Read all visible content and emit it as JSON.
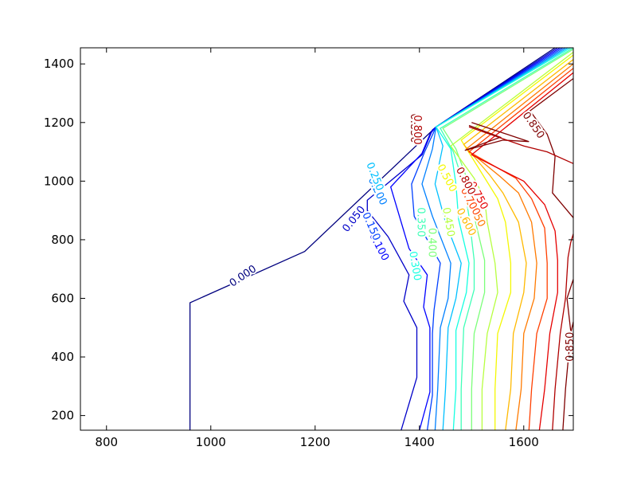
{
  "chart_data": {
    "type": "contour",
    "title": "",
    "xlabel": "",
    "ylabel": "",
    "xlim": [
      750,
      1695
    ],
    "ylim": [
      150,
      1455
    ],
    "grid": false,
    "x_ticks": [
      800,
      1000,
      1200,
      1400,
      1600
    ],
    "y_ticks": [
      200,
      400,
      600,
      800,
      1000,
      1200,
      1400
    ],
    "x_tick_labels": [
      "800",
      "1000",
      "1200",
      "1400",
      "1600"
    ],
    "y_tick_labels": [
      "200",
      "400",
      "600",
      "800",
      "1000",
      "1200",
      "1400"
    ],
    "colormap": "jet",
    "levels": [
      {
        "value": 0.0,
        "label": "0.000",
        "color": "#00007f",
        "points": [
          [
            960,
            150
          ],
          [
            960,
            585
          ],
          [
            1180,
            760
          ],
          [
            1432,
            1185
          ],
          [
            1660,
            1455
          ]
        ]
      },
      {
        "value": 0.05,
        "label": "0.050",
        "color": "#0000c8",
        "points": [
          [
            1365,
            150
          ],
          [
            1395,
            330
          ],
          [
            1395,
            500
          ],
          [
            1370,
            590
          ],
          [
            1380,
            680
          ],
          [
            1340,
            810
          ],
          [
            1300,
            900
          ],
          [
            1300,
            935
          ],
          [
            1405,
            1090
          ],
          [
            1425,
            1175
          ],
          [
            1432,
            1185
          ],
          [
            1665,
            1455
          ]
        ]
      },
      {
        "value": 0.1,
        "label": "0.100",
        "color": "#0000ff",
        "points": [
          [
            1400,
            150
          ],
          [
            1420,
            280
          ],
          [
            1420,
            500
          ],
          [
            1408,
            570
          ],
          [
            1415,
            680
          ],
          [
            1380,
            770
          ],
          [
            1345,
            980
          ],
          [
            1405,
            1095
          ],
          [
            1420,
            1160
          ],
          [
            1432,
            1185
          ],
          [
            1670,
            1455
          ]
        ]
      },
      {
        "value": 0.15,
        "label": "0.150",
        "color": "#0040ff",
        "points": [
          [
            1415,
            150
          ],
          [
            1425,
            270
          ],
          [
            1425,
            480
          ],
          [
            1428,
            560
          ],
          [
            1440,
            720
          ],
          [
            1390,
            880
          ],
          [
            1385,
            990
          ],
          [
            1410,
            1100
          ],
          [
            1432,
            1185
          ],
          [
            1675,
            1455
          ]
        ]
      },
      {
        "value": 0.2,
        "label": "0.200",
        "color": "#0080ff",
        "points": [
          [
            1430,
            150
          ],
          [
            1435,
            290
          ],
          [
            1440,
            500
          ],
          [
            1455,
            600
          ],
          [
            1460,
            720
          ],
          [
            1425,
            880
          ],
          [
            1405,
            990
          ],
          [
            1425,
            1110
          ],
          [
            1432,
            1185
          ],
          [
            1680,
            1455
          ]
        ]
      },
      {
        "value": 0.25,
        "label": "0.250",
        "color": "#00c0ff",
        "points": [
          [
            1445,
            150
          ],
          [
            1450,
            290
          ],
          [
            1455,
            500
          ],
          [
            1470,
            600
          ],
          [
            1480,
            720
          ],
          [
            1450,
            860
          ],
          [
            1430,
            990
          ],
          [
            1445,
            1120
          ],
          [
            1432,
            1185
          ],
          [
            1685,
            1455
          ]
        ]
      },
      {
        "value": 0.3,
        "label": "0.300",
        "color": "#15ffe1",
        "points": [
          [
            1465,
            150
          ],
          [
            1470,
            290
          ],
          [
            1470,
            490
          ],
          [
            1490,
            620
          ],
          [
            1495,
            720
          ],
          [
            1475,
            870
          ],
          [
            1470,
            990
          ],
          [
            1460,
            1110
          ],
          [
            1432,
            1185
          ],
          [
            1690,
            1455
          ]
        ]
      },
      {
        "value": 0.35,
        "label": "0.350",
        "color": "#40ffb7",
        "points": [
          [
            1480,
            150
          ],
          [
            1480,
            290
          ],
          [
            1485,
            500
          ],
          [
            1505,
            630
          ],
          [
            1505,
            730
          ],
          [
            1495,
            880
          ],
          [
            1485,
            990
          ],
          [
            1465,
            1100
          ],
          [
            1440,
            1180
          ],
          [
            1695,
            1455
          ]
        ]
      },
      {
        "value": 0.4,
        "label": "0.400",
        "color": "#7cff7a",
        "points": [
          [
            1500,
            150
          ],
          [
            1500,
            290
          ],
          [
            1505,
            480
          ],
          [
            1525,
            620
          ],
          [
            1525,
            730
          ],
          [
            1505,
            880
          ],
          [
            1495,
            990
          ],
          [
            1470,
            1110
          ],
          [
            1445,
            1180
          ],
          [
            1695,
            1450
          ]
        ]
      },
      {
        "value": 0.45,
        "label": "0.450",
        "color": "#b7ff40",
        "points": [
          [
            1520,
            150
          ],
          [
            1520,
            290
          ],
          [
            1530,
            480
          ],
          [
            1550,
            620
          ],
          [
            1545,
            720
          ],
          [
            1530,
            860
          ],
          [
            1525,
            940
          ],
          [
            1505,
            1010
          ],
          [
            1460,
            1120
          ],
          [
            1695,
            1440
          ]
        ]
      },
      {
        "value": 0.5,
        "label": "0.500",
        "color": "#f4f802",
        "points": [
          [
            1545,
            150
          ],
          [
            1545,
            290
          ],
          [
            1550,
            480
          ],
          [
            1575,
            620
          ],
          [
            1575,
            720
          ],
          [
            1565,
            860
          ],
          [
            1550,
            940
          ],
          [
            1515,
            1040
          ],
          [
            1480,
            1140
          ],
          [
            1695,
            1430
          ]
        ]
      },
      {
        "value": 0.6,
        "label": "0.600",
        "color": "#ffb900",
        "points": [
          [
            1565,
            150
          ],
          [
            1575,
            290
          ],
          [
            1580,
            480
          ],
          [
            1600,
            620
          ],
          [
            1605,
            720
          ],
          [
            1590,
            860
          ],
          [
            1560,
            960
          ],
          [
            1535,
            1020
          ],
          [
            1485,
            1125
          ],
          [
            1695,
            1415
          ]
        ]
      },
      {
        "value": 0.65,
        "label": "0.650",
        "color": "#ff7a00",
        "points": [
          [
            1585,
            150
          ],
          [
            1595,
            290
          ],
          [
            1600,
            480
          ],
          [
            1620,
            600
          ],
          [
            1625,
            720
          ],
          [
            1615,
            860
          ],
          [
            1590,
            960
          ],
          [
            1555,
            1015
          ],
          [
            1490,
            1110
          ],
          [
            1695,
            1400
          ]
        ]
      },
      {
        "value": 0.7,
        "label": "0.700",
        "color": "#ff3f00",
        "points": [
          [
            1610,
            150
          ],
          [
            1615,
            290
          ],
          [
            1625,
            480
          ],
          [
            1645,
            600
          ],
          [
            1645,
            720
          ],
          [
            1640,
            840
          ],
          [
            1615,
            940
          ],
          [
            1585,
            1010
          ],
          [
            1495,
            1100
          ],
          [
            1695,
            1385
          ]
        ]
      },
      {
        "value": 0.75,
        "label": "0.750",
        "color": "#e50000",
        "points": [
          [
            1630,
            150
          ],
          [
            1640,
            290
          ],
          [
            1650,
            480
          ],
          [
            1665,
            620
          ],
          [
            1665,
            730
          ],
          [
            1660,
            830
          ],
          [
            1640,
            920
          ],
          [
            1600,
            1000
          ],
          [
            1500,
            1090
          ],
          [
            1695,
            1370
          ]
        ]
      },
      {
        "value": 0.8,
        "label": "0.800",
        "color": "#b00000",
        "points": [
          [
            1655,
            150
          ],
          [
            1660,
            290
          ],
          [
            1670,
            480
          ],
          [
            1680,
            600
          ],
          [
            1685,
            740
          ],
          [
            1690,
            790
          ],
          [
            1695,
            820
          ]
        ]
      },
      {
        "value": 0.85,
        "label": "0.850",
        "color": "#7f0000",
        "points": [
          [
            1675,
            150
          ],
          [
            1680,
            290
          ],
          [
            1690,
            480
          ],
          [
            1695,
            520
          ]
        ]
      },
      {
        "value": 0.85,
        "label": "0.850",
        "color": "#7f0000",
        "points": [
          [
            1695,
            875
          ],
          [
            1655,
            960
          ],
          [
            1660,
            1085
          ],
          [
            1645,
            1160
          ],
          [
            1612,
            1240
          ],
          [
            1695,
            1350
          ]
        ]
      },
      {
        "value": 0.85,
        "label": "0.850",
        "color": "#7f0000",
        "points": [
          [
            1695,
            665
          ],
          [
            1683,
            600
          ],
          [
            1690,
            490
          ]
        ]
      },
      {
        "value": 0.85,
        "label": "0.850",
        "color": "#7f0000",
        "points": [
          [
            1495,
            1190
          ],
          [
            1555,
            1150
          ],
          [
            1487,
            1105
          ],
          [
            1560,
            1140
          ],
          [
            1610,
            1135
          ],
          [
            1500,
            1200
          ]
        ]
      },
      {
        "value": 0.8,
        "label": "0.800",
        "color": "#b00000",
        "points": [
          [
            1495,
            1185
          ],
          [
            1600,
            1120
          ],
          [
            1645,
            1100
          ],
          [
            1695,
            1060
          ]
        ]
      }
    ],
    "labels": [
      {
        "text": "0.000",
        "color": "#00007f",
        "x": 1062,
        "y": 675,
        "angle": -34
      },
      {
        "text": "0.050",
        "color": "#0000c8",
        "x": 1275,
        "y": 870,
        "angle": -52
      },
      {
        "text": "0.100",
        "color": "#0000ff",
        "x": 1322,
        "y": 775,
        "angle": 62
      },
      {
        "text": "0.150",
        "color": "#0040ff",
        "x": 1307,
        "y": 845,
        "angle": 66
      },
      {
        "text": "0.200",
        "color": "#0080ff",
        "x": 1319,
        "y": 965,
        "angle": 64
      },
      {
        "text": "0.250",
        "color": "#00c0ff",
        "x": 1314,
        "y": 1015,
        "angle": 68
      },
      {
        "text": "0.300",
        "color": "#15ffe1",
        "x": 1391,
        "y": 710,
        "angle": 80
      },
      {
        "text": "0.350",
        "color": "#40ffb7",
        "x": 1402,
        "y": 860,
        "angle": 90
      },
      {
        "text": "0.400",
        "color": "#7cff7a",
        "x": 1423,
        "y": 790,
        "angle": 90
      },
      {
        "text": "0.450",
        "color": "#b7ff40",
        "x": 1455,
        "y": 860,
        "angle": 80
      },
      {
        "text": "0.500",
        "color": "#f4f802",
        "x": 1452,
        "y": 1010,
        "angle": 62
      },
      {
        "text": "0.600",
        "color": "#ffb900",
        "x": 1489,
        "y": 860,
        "angle": 62
      },
      {
        "text": "0.650",
        "color": "#ff7a00",
        "x": 1507,
        "y": 890,
        "angle": 62
      },
      {
        "text": "0.700",
        "color": "#ff3f00",
        "x": 1497,
        "y": 930,
        "angle": 62
      },
      {
        "text": "0.750",
        "color": "#e50000",
        "x": 1512,
        "y": 950,
        "angle": 62
      },
      {
        "text": "0.800",
        "color": "#b00000",
        "x": 1488,
        "y": 1000,
        "angle": 62
      },
      {
        "text": "0.850",
        "color": "#7f0000",
        "x": 1618,
        "y": 1190,
        "angle": 55
      },
      {
        "text": "0.850",
        "color": "#7f0000",
        "x": 1690,
        "y": 435,
        "angle": -90
      },
      {
        "text": "0.850",
        "color": "#7f0000",
        "x": 1389,
        "y": 1180,
        "angle": 90
      },
      {
        "text": "0.800",
        "color": "#b00000",
        "x": 1395,
        "y": 1175,
        "angle": 90
      }
    ]
  }
}
